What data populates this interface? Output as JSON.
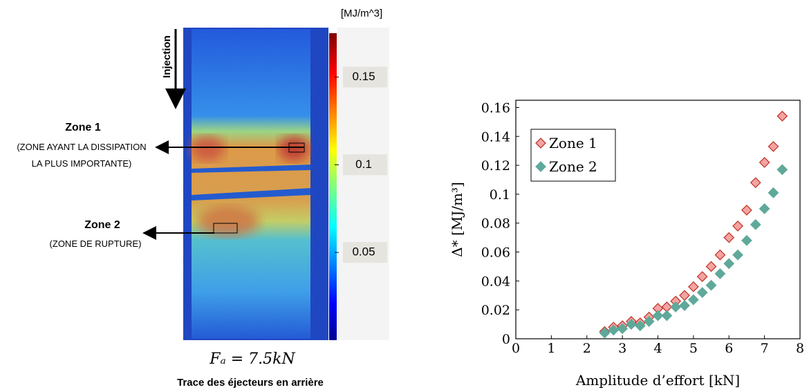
{
  "image_panel": {
    "colorbar_unit": "[MJ/m^3]",
    "clim": [
      0,
      0.175
    ],
    "colorbar_ticks": [
      0.05,
      0.1,
      0.15
    ],
    "arrow_label": "Injection",
    "zone1_title": "Zone 1",
    "zone1_line1": "(ZONE AYANT  LA DISSIPATION",
    "zone1_line2": "LA PLUS IMPORTANTE)",
    "zone2_title": "Zone 2",
    "zone2_line1": "(ZONE DE RUPTURE)",
    "load_label": "Fₐ = 7.5kN",
    "caption": "Trace des éjecteurs en arrière"
  },
  "chart_data": {
    "type": "scatter",
    "xlabel": "Amplitude d’effort [kN]",
    "ylabel": "Δ* [MJ/m³]",
    "x": [
      2.5,
      2.75,
      3,
      3.25,
      3.5,
      3.75,
      4,
      4.25,
      4.5,
      4.75,
      5,
      5.25,
      5.5,
      5.75,
      6,
      6.25,
      6.5,
      6.75,
      7,
      7.25,
      7.5
    ],
    "series": [
      {
        "name": "Zone 1",
        "color": "#f4a3a3",
        "edge": "#c0392b",
        "values": [
          0.005,
          0.008,
          0.009,
          0.012,
          0.011,
          0.015,
          0.021,
          0.022,
          0.026,
          0.03,
          0.036,
          0.043,
          0.05,
          0.058,
          0.07,
          0.078,
          0.089,
          0.108,
          0.122,
          0.133,
          0.154
        ]
      },
      {
        "name": "Zone 2",
        "color": "#5fa99a",
        "edge": "#5fa99a",
        "values": [
          0.004,
          0.006,
          0.007,
          0.01,
          0.009,
          0.012,
          0.016,
          0.016,
          0.022,
          0.023,
          0.027,
          0.032,
          0.037,
          0.045,
          0.052,
          0.058,
          0.068,
          0.079,
          0.09,
          0.101,
          0.117
        ]
      }
    ],
    "xlim": [
      0,
      8
    ],
    "ylim": [
      0,
      0.165
    ],
    "xticks": [
      0,
      1,
      2,
      3,
      4,
      5,
      6,
      7,
      8
    ],
    "yticks": [
      0,
      0.02,
      0.04,
      0.06,
      0.08,
      0.1,
      0.12,
      0.14,
      0.16
    ],
    "legend": "upper left"
  }
}
